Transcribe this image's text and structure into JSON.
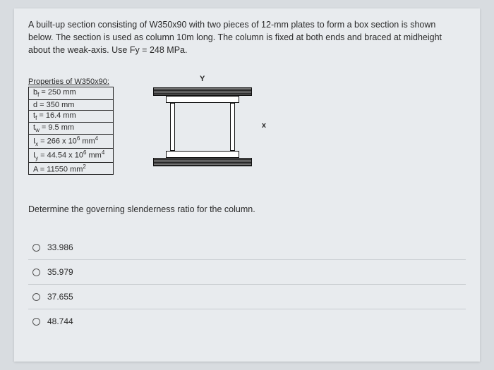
{
  "problem": {
    "line1": "A built-up section consisting of W350x90 with two pieces of 12-mm plates to form a box section is shown",
    "line2": "below. The section is used as column 10m long. The column is fixed at both ends and braced at midheight",
    "line3": "about the weak-axis. Use Fy = 248 MPa."
  },
  "properties": {
    "caption": "Properties of W350x90:",
    "rows": [
      "b_f = 250 mm",
      "d = 350 mm",
      "t_f = 16.4 mm",
      "t_w = 9.5 mm",
      "I_x = 266 x 10^6 mm^4",
      "I_y = 44.54 x 10^6 mm^4",
      "A = 11550 mm^2"
    ],
    "rows_html": [
      "b<sub>f</sub> = 250 mm",
      "d = 350 mm",
      "t<sub>f</sub> = 16.4 mm",
      "t<sub>w</sub> = 9.5 mm",
      "I<sub>x</sub> = 266 x 10<sup>6</sup> mm<sup>4</sup>",
      "I<sub>y</sub> = 44.54 x 10<sup>6</sup> mm<sup>4</sup>",
      "A = 11550 mm<sup>2</sup>"
    ]
  },
  "figure": {
    "y_label": "Y",
    "x_label": "x",
    "colors": {
      "line": "#111111",
      "hatch": "#555555",
      "bg": "#e8ebee"
    }
  },
  "question": "Determine the governing slenderness ratio for the column.",
  "options": [
    "33.986",
    "35.979",
    "37.655",
    "48.744"
  ],
  "colors": {
    "page_bg": "#d8dce0",
    "paper_bg": "#e8ebee",
    "text": "#2a2a2a",
    "divider": "#c8ccd0"
  }
}
